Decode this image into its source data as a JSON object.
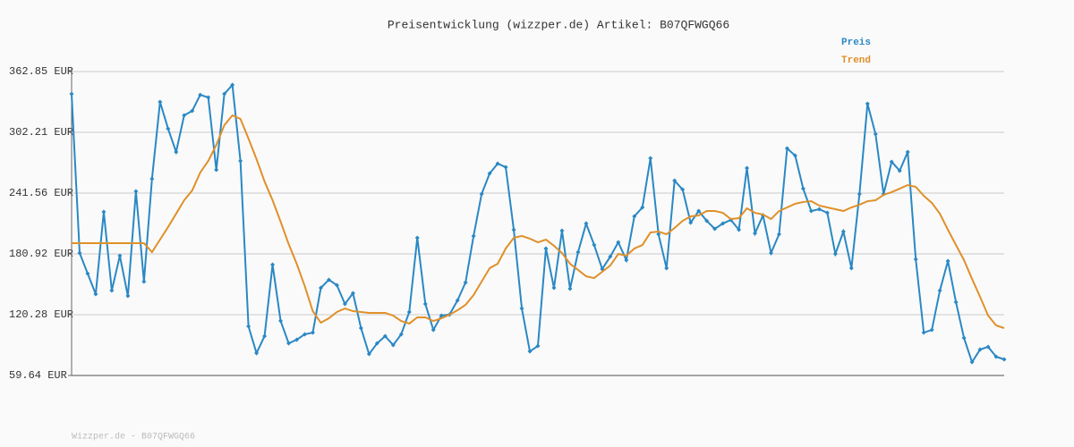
{
  "chart_data": {
    "type": "line",
    "title": "Preisentwicklung (wizzper.de) Artikel: B07QFWGQ66",
    "ylim": [
      59.64,
      362.85
    ],
    "yticks": [
      {
        "value": 59.64,
        "label": "59.64 EUR"
      },
      {
        "value": 120.28,
        "label": "120.28 EUR"
      },
      {
        "value": 180.92,
        "label": "180.92 EUR"
      },
      {
        "value": 241.56,
        "label": "241.56 EUR"
      },
      {
        "value": 302.21,
        "label": "302.21 EUR"
      },
      {
        "value": 362.85,
        "label": "362.85 EUR"
      }
    ],
    "grid": true,
    "legend": "top-right",
    "series": [
      {
        "name": "Preis",
        "color": "#2a88c4",
        "markers": true,
        "values": [
          340.5,
          181.8,
          161.3,
          140.8,
          222.8,
          144.4,
          179.1,
          139.0,
          243.3,
          153.3,
          255.8,
          332.5,
          305.8,
          282.6,
          319.1,
          323.6,
          339.6,
          337.0,
          264.7,
          340.5,
          349.5,
          273.7,
          108.7,
          81.9,
          98.9,
          170.2,
          114.0,
          91.7,
          95.3,
          100.7,
          102.4,
          147.0,
          155.1,
          149.7,
          131.0,
          141.7,
          106.9,
          81.0,
          91.7,
          98.9,
          90.0,
          100.7,
          123.0,
          197.0,
          131.0,
          105.1,
          119.4,
          120.3,
          134.5,
          152.4,
          198.8,
          240.7,
          261.2,
          271.0,
          267.4,
          205.0,
          126.5,
          83.7,
          89.1,
          186.3,
          147.0,
          204.1,
          146.1,
          182.7,
          211.2,
          189.8,
          165.8,
          178.2,
          192.5,
          174.7,
          218.4,
          227.3,
          276.3,
          200.5,
          166.7,
          254.0,
          245.1,
          212.1,
          223.7,
          213.9,
          205.9,
          211.2,
          214.8,
          205.0,
          266.5,
          201.4,
          219.3,
          181.8,
          200.5,
          286.1,
          279.0,
          246.0,
          223.7,
          225.5,
          221.9,
          180.9,
          203.2,
          166.7,
          240.7,
          330.7,
          300.4,
          240.7,
          272.8,
          263.9,
          282.6,
          175.6,
          102.4,
          105.1,
          144.4,
          173.8,
          132.8,
          97.1,
          73.0,
          85.5,
          88.2,
          78.4,
          75.7
        ]
      },
      {
        "name": "Trend",
        "color": "#e0902a",
        "markers": false,
        "values": [
          191.6,
          191.6,
          191.6,
          191.6,
          191.6,
          191.6,
          191.6,
          191.6,
          191.6,
          191.6,
          182.7,
          195.2,
          207.7,
          221.0,
          234.4,
          244.2,
          262.1,
          273.7,
          289.7,
          309.3,
          319.1,
          315.6,
          296.0,
          275.5,
          253.2,
          234.4,
          213.0,
          190.7,
          171.1,
          148.8,
          123.8,
          112.3,
          116.7,
          123.0,
          126.5,
          123.8,
          123.0,
          122.1,
          122.1,
          122.1,
          119.4,
          114.0,
          111.4,
          117.6,
          117.6,
          114.0,
          116.7,
          120.3,
          124.7,
          130.1,
          139.9,
          153.3,
          166.7,
          171.1,
          186.3,
          197.0,
          198.8,
          196.1,
          192.5,
          195.2,
          189.0,
          181.8,
          171.1,
          164.9,
          158.6,
          156.8,
          163.1,
          169.3,
          180.9,
          179.1,
          186.3,
          189.8,
          202.3,
          203.2,
          200.5,
          206.8,
          213.9,
          218.4,
          219.3,
          223.7,
          223.7,
          221.9,
          215.7,
          216.6,
          226.4,
          221.9,
          220.2,
          215.7,
          223.7,
          227.3,
          230.9,
          232.7,
          233.5,
          229.1,
          227.3,
          225.5,
          223.7,
          227.3,
          230.0,
          233.5,
          234.4,
          239.8,
          242.5,
          246.0,
          249.6,
          247.8,
          238.9,
          231.8,
          221.0,
          205.0,
          189.8,
          174.7,
          156.0,
          138.1,
          119.4,
          109.6,
          106.9
        ]
      }
    ]
  },
  "footer": "Wizzper.de - B07QFWGQ66"
}
